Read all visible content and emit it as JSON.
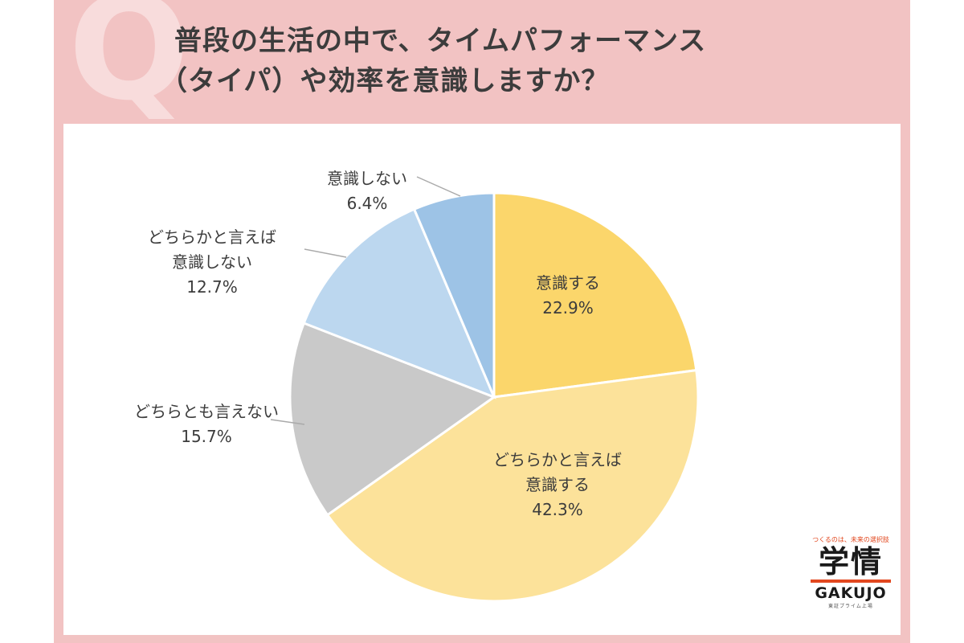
{
  "header": {
    "q_letter": "Q",
    "title_line1": "普段の生活の中で、タイムパフォーマンス",
    "title_line2": "（タイパ）や効率を意識しますか？"
  },
  "colors": {
    "frame": "#f2c3c3",
    "q_letter": "#f8dcdc",
    "accent": "#e2481f"
  },
  "chart_data": {
    "type": "pie",
    "title": "普段の生活の中で、タイムパフォーマンス（タイパ）や効率を意識しますか？",
    "start": "12 o'clock",
    "direction": "clockwise",
    "slices": [
      {
        "label_lines": [
          "意識する"
        ],
        "value": 22.9,
        "value_label": "22.9%",
        "color": "#fbd66b",
        "label_inside": true
      },
      {
        "label_lines": [
          "どちらかと言えば",
          "意識する"
        ],
        "value": 42.3,
        "value_label": "42.3%",
        "color": "#fce29a",
        "label_inside": true
      },
      {
        "label_lines": [
          "どちらとも言えない"
        ],
        "value": 15.7,
        "value_label": "15.7%",
        "color": "#c9c9c9",
        "label_inside": false
      },
      {
        "label_lines": [
          "どちらかと言えば",
          "意識しない"
        ],
        "value": 12.7,
        "value_label": "12.7%",
        "color": "#bcd7ef",
        "label_inside": false
      },
      {
        "label_lines": [
          "意識しない"
        ],
        "value": 6.4,
        "value_label": "6.4%",
        "color": "#9dc3e6",
        "label_inside": false
      }
    ]
  },
  "logo": {
    "tagline": "つくるのは、未来の選択肢",
    "kanji": "学情",
    "english": "GAKUJO",
    "sub": "東証プライム上場"
  }
}
